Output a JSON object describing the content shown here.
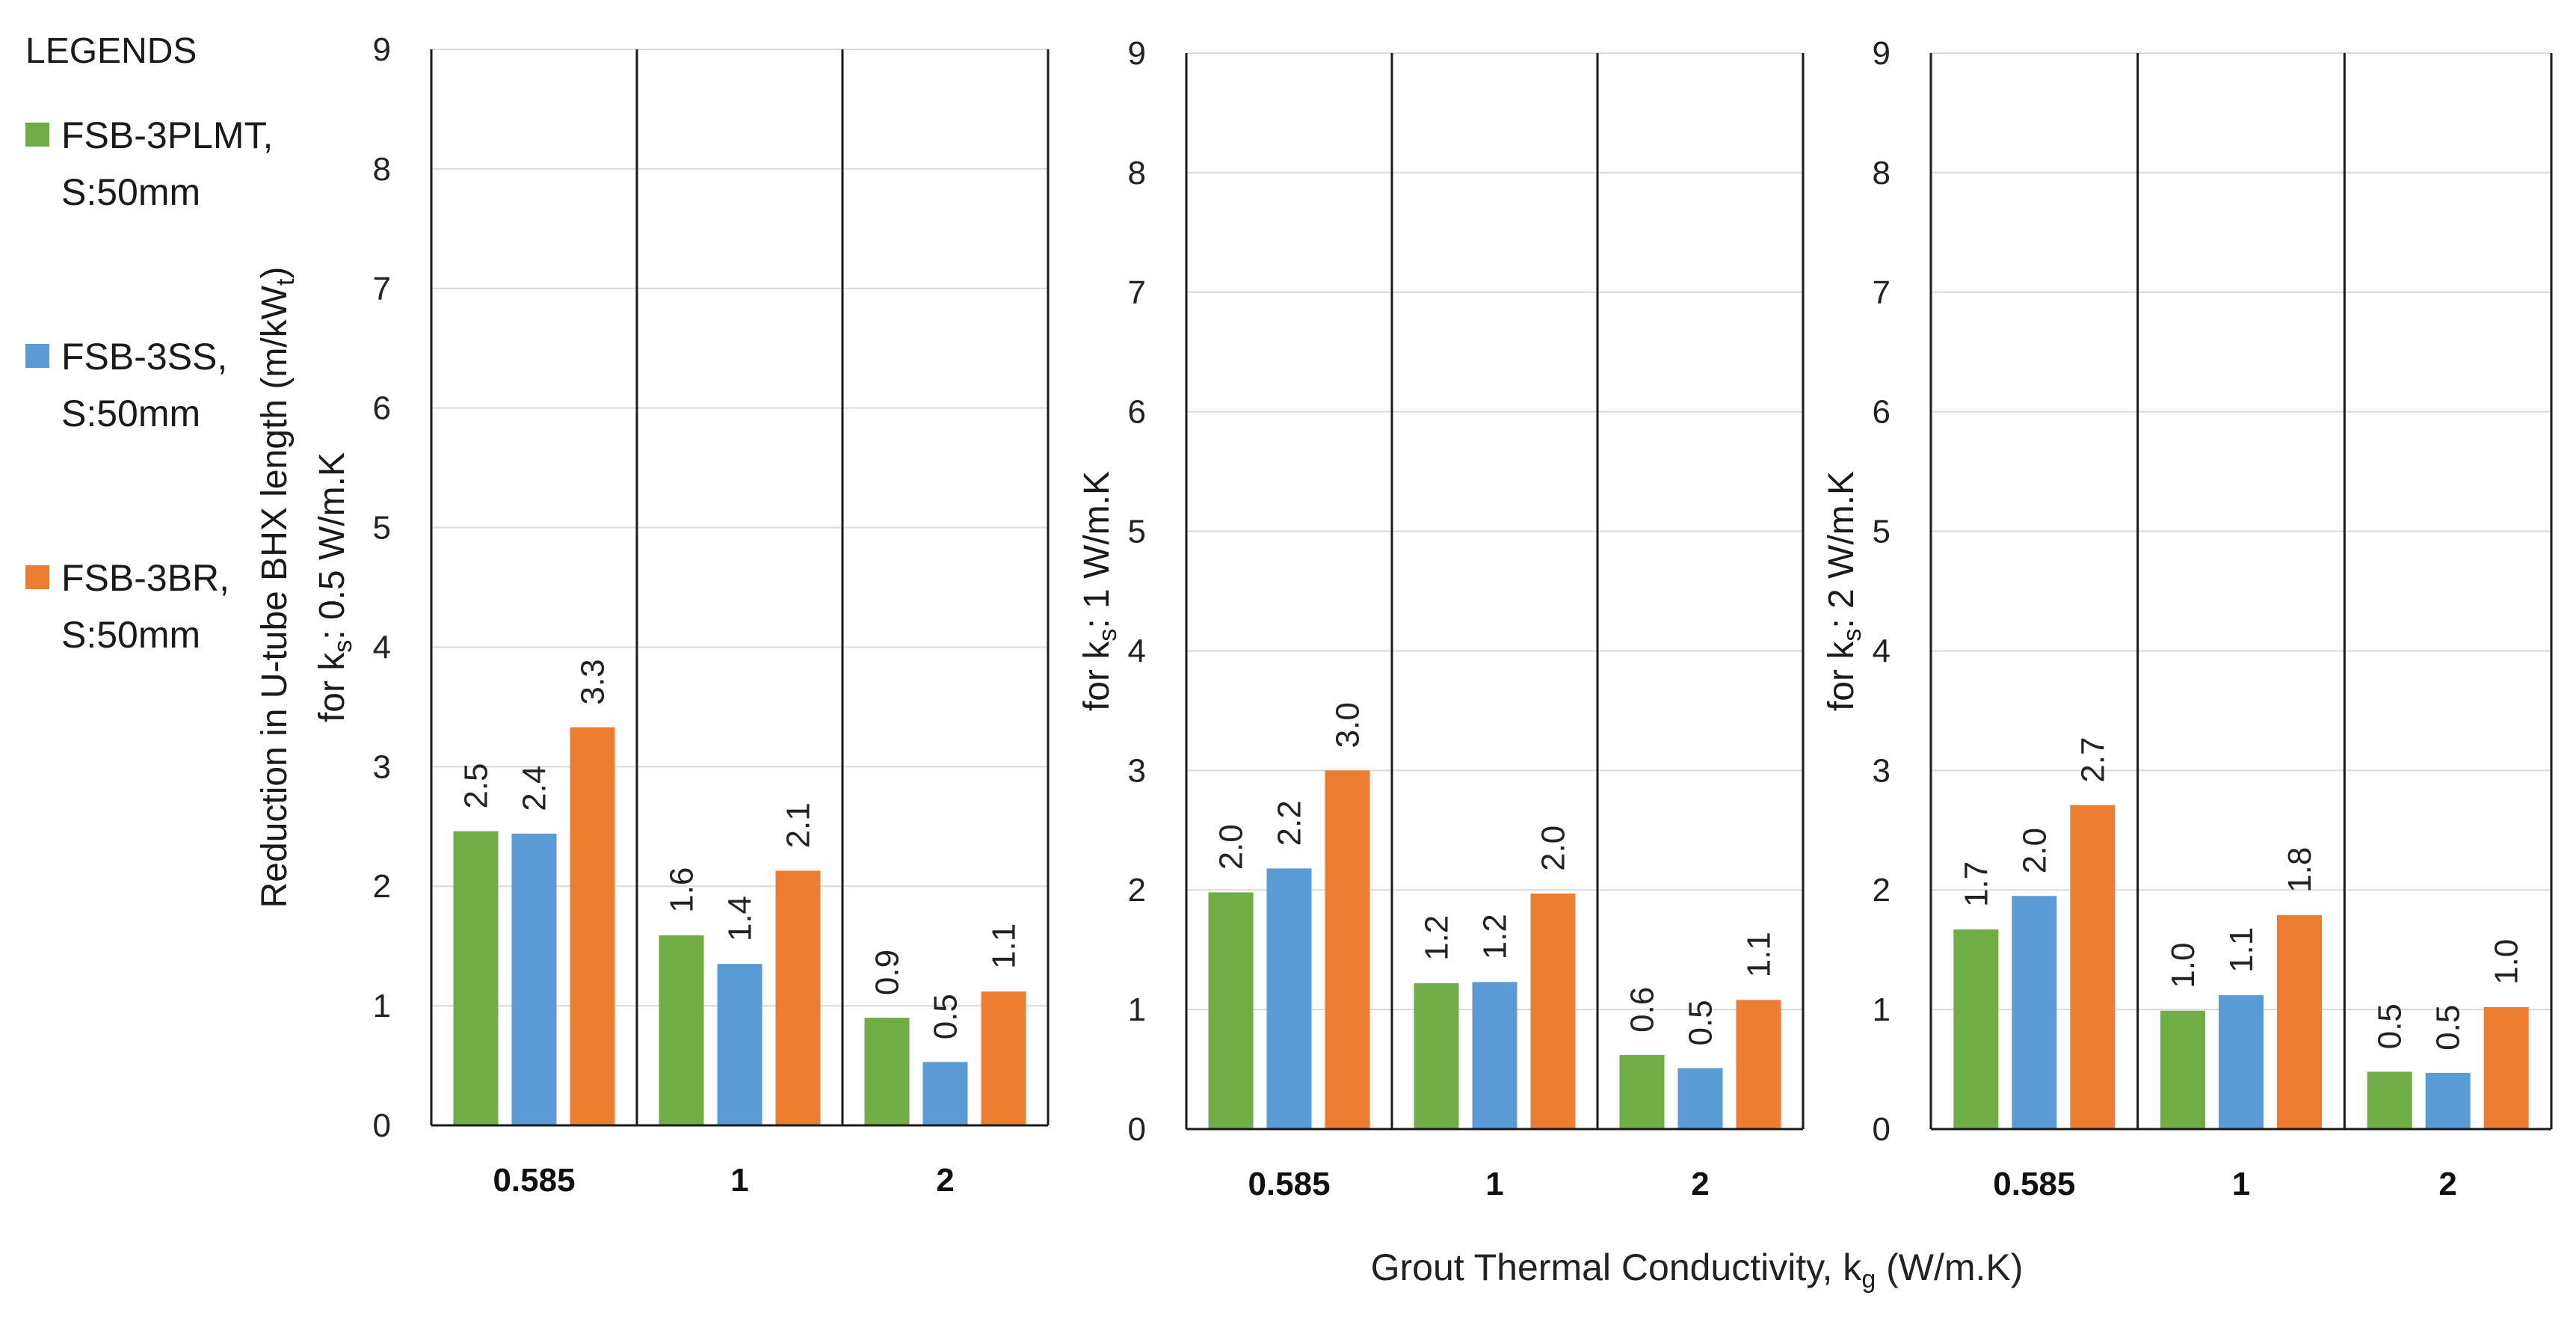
{
  "chart_data": {
    "type": "bar",
    "legend_title": "LEGENDS",
    "series": [
      {
        "name": "FSB-3PLMT, S:50mm",
        "line1": "FSB-3PLMT,",
        "line2": "S:50mm",
        "color": "#70ad47"
      },
      {
        "name": "FSB-3SS, S:50mm",
        "line1": "FSB-3SS,",
        "line2": "S:50mm",
        "color": "#5b9bd5"
      },
      {
        "name": "FSB-3BR, S:50mm",
        "line1": "FSB-3BR,",
        "line2": "S:50mm",
        "color": "#ed7d31"
      }
    ],
    "categories": [
      "0.585",
      "1",
      "2"
    ],
    "xlabel": {
      "main": "Grout Thermal Conductivity,  k",
      "sub": "g",
      "unit": " (W/m.K)"
    },
    "ylim": [
      0,
      9
    ],
    "yticks": [
      "0",
      "1",
      "2",
      "3",
      "4",
      "5",
      "6",
      "7",
      "8",
      "9"
    ],
    "panels": [
      {
        "ylabel_line1": {
          "main": "Reduction in U-tube BHX length (m/kW",
          "sub": "t",
          "end": ")"
        },
        "ylabel_line2": {
          "main": "for k",
          "sub": "s",
          "end": ": 0.5 W/m.K"
        },
        "values": [
          [
            2.46,
            2.44,
            3.33
          ],
          [
            1.59,
            1.35,
            2.13
          ],
          [
            0.9,
            0.53,
            1.12
          ]
        ],
        "labels": [
          [
            "2.5",
            "2.4",
            "3.3"
          ],
          [
            "1.6",
            "1.4",
            "2.1"
          ],
          [
            "0.9",
            "0.5",
            "1.1"
          ]
        ]
      },
      {
        "ylabel_line2": {
          "main": "for k",
          "sub": "s",
          "end": ": 1 W/m.K"
        },
        "values": [
          [
            1.98,
            2.18,
            3.0
          ],
          [
            1.22,
            1.23,
            1.97
          ],
          [
            0.62,
            0.51,
            1.08
          ]
        ],
        "labels": [
          [
            "2.0",
            "2.2",
            "3.0"
          ],
          [
            "1.2",
            "1.2",
            "2.0"
          ],
          [
            "0.6",
            "0.5",
            "1.1"
          ]
        ]
      },
      {
        "ylabel_line2": {
          "main": "for k",
          "sub": "s",
          "end": ": 2 W/m.K"
        },
        "values": [
          [
            1.67,
            1.95,
            2.71
          ],
          [
            0.99,
            1.12,
            1.79
          ],
          [
            0.48,
            0.47,
            1.02
          ]
        ],
        "labels": [
          [
            "1.7",
            "2.0",
            "2.7"
          ],
          [
            "1.0",
            "1.1",
            "1.8"
          ],
          [
            "0.5",
            "0.5",
            "1.0"
          ]
        ]
      }
    ]
  }
}
